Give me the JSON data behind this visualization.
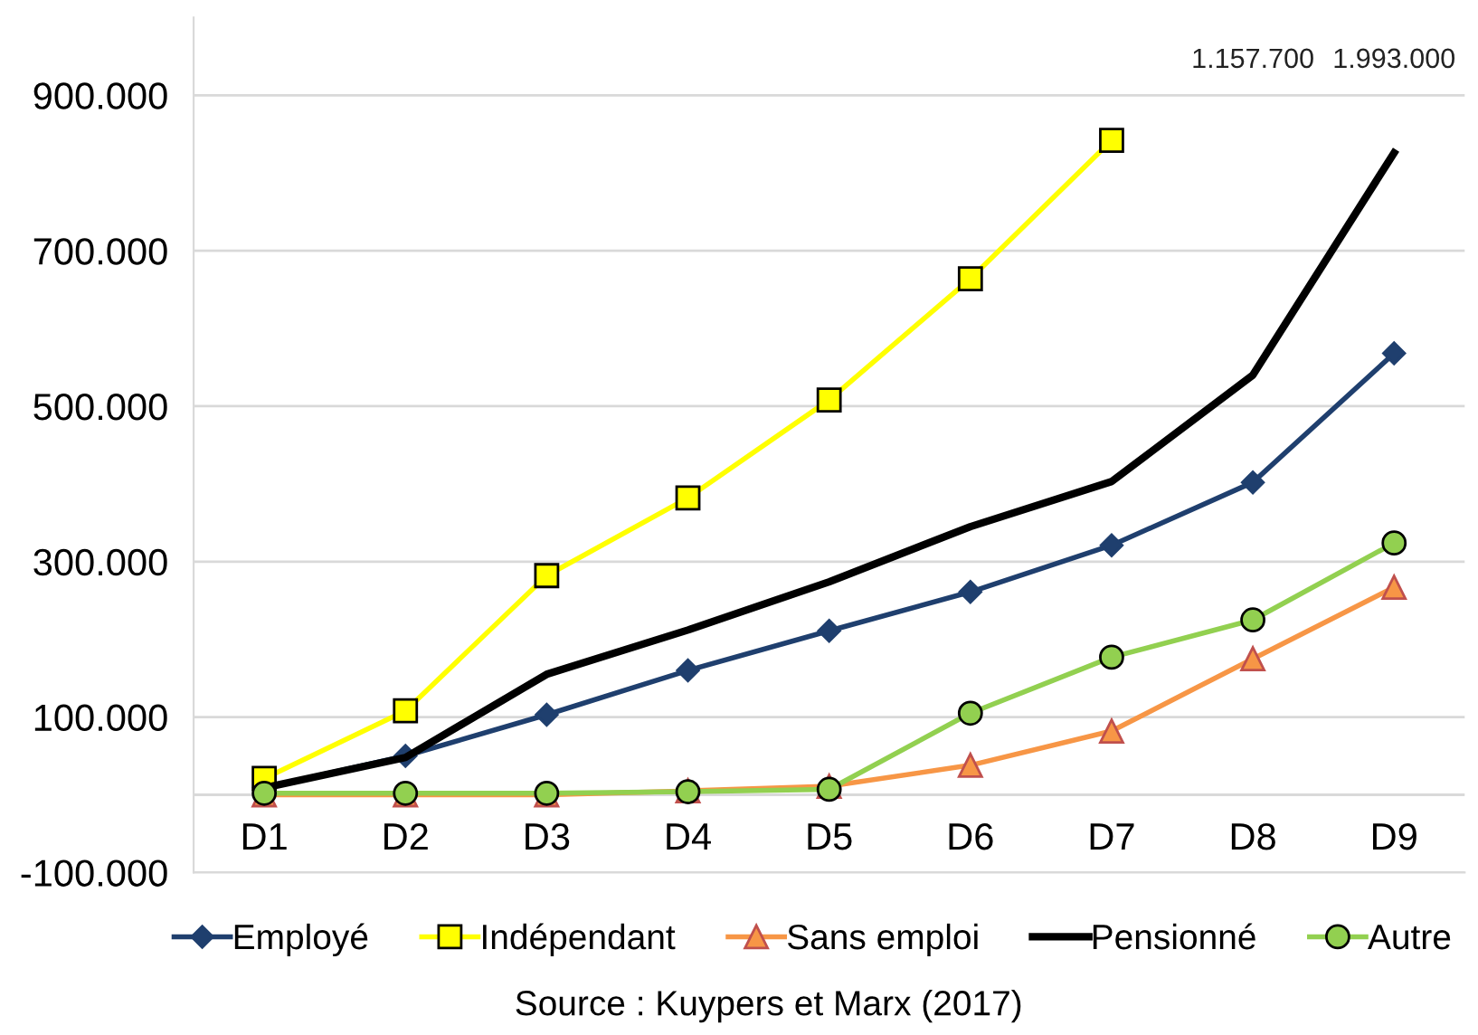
{
  "chart_data": {
    "type": "line",
    "categories": [
      "D1",
      "D2",
      "D3",
      "D4",
      "D5",
      "D6",
      "D7",
      "D8",
      "D9"
    ],
    "series": [
      {
        "name": "Employé",
        "color": "#1f3f6e",
        "marker": "diamond",
        "values": [
          9000,
          50000,
          103000,
          160000,
          211000,
          261000,
          321000,
          402000,
          568000
        ]
      },
      {
        "name": "Indépendant",
        "color": "#ffff00",
        "marker": "square",
        "values": [
          21000,
          108000,
          282000,
          382000,
          508000,
          664000,
          842000,
          null,
          null
        ]
      },
      {
        "name": "Sans emploi",
        "color": "#f79646",
        "marker": "triangle",
        "values": [
          0,
          0,
          0,
          5000,
          11000,
          38000,
          82000,
          175000,
          267000
        ]
      },
      {
        "name": "Pensionné",
        "color": "#000000",
        "marker": "none",
        "values": [
          9000,
          48000,
          155000,
          212000,
          274000,
          345000,
          403000,
          540000,
          826000
        ]
      },
      {
        "name": "Autre",
        "color": "#92d050",
        "marker": "circle",
        "values": [
          2000,
          2000,
          2000,
          4000,
          7000,
          105000,
          177000,
          225000,
          324000
        ]
      }
    ],
    "ylim": [
      -100000,
      1000000
    ],
    "yticks": [
      {
        "value": -100000,
        "label": "-100.000"
      },
      {
        "value": 0,
        "label": null
      },
      {
        "value": 100000,
        "label": "100.000"
      },
      {
        "value": 300000,
        "label": "300.000"
      },
      {
        "value": 500000,
        "label": "500.000"
      },
      {
        "value": 700000,
        "label": "700.000"
      },
      {
        "value": 900000,
        "label": "900.000"
      }
    ],
    "grid": "y",
    "legend": "bottom",
    "annotations": [
      "1.157.700",
      "1.993.000",
      "Source : Kuypers et Marx (2017)"
    ]
  }
}
